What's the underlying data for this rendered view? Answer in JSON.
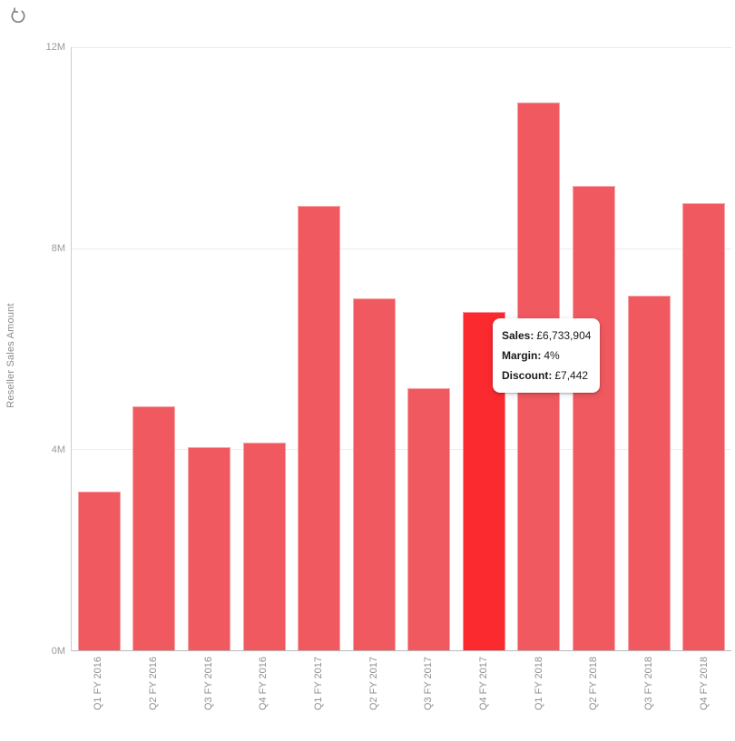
{
  "toolbar": {
    "refresh_icon": "refresh-circular-arrow"
  },
  "chart_data": {
    "type": "bar",
    "title": "",
    "xlabel": "",
    "ylabel": "Reseller Sales Amount",
    "unit": "M",
    "ylim": [
      0,
      12
    ],
    "grid": true,
    "legend": "none",
    "y_ticks": [
      {
        "label": "0M",
        "value": 0
      },
      {
        "label": "4M",
        "value": 4
      },
      {
        "label": "8M",
        "value": 8
      },
      {
        "label": "12M",
        "value": 12
      }
    ],
    "categories": [
      "Q1 FY 2016",
      "Q2 FY 2016",
      "Q3 FY 2016",
      "Q4 FY 2016",
      "Q1 FY 2017",
      "Q2 FY 2017",
      "Q3 FY 2017",
      "Q4 FY 2017",
      "Q1 FY 2018",
      "Q2 FY 2018",
      "Q3 FY 2018",
      "Q4 FY 2018"
    ],
    "values": [
      3.15,
      4.85,
      4.05,
      4.13,
      8.85,
      7.0,
      5.22,
      6.733904,
      10.9,
      9.24,
      7.06,
      8.9
    ],
    "bar_color": "#f0595f",
    "highlight_color": "#fb2a2f",
    "highlighted_index": 7,
    "highlighted_category": "Q4 FY 2017"
  },
  "tooltip": {
    "rows": [
      {
        "label": "Sales:",
        "value": "£6,733,904"
      },
      {
        "label": "Margin:",
        "value": "4%"
      },
      {
        "label": "Discount:",
        "value": "£7,442"
      }
    ]
  }
}
